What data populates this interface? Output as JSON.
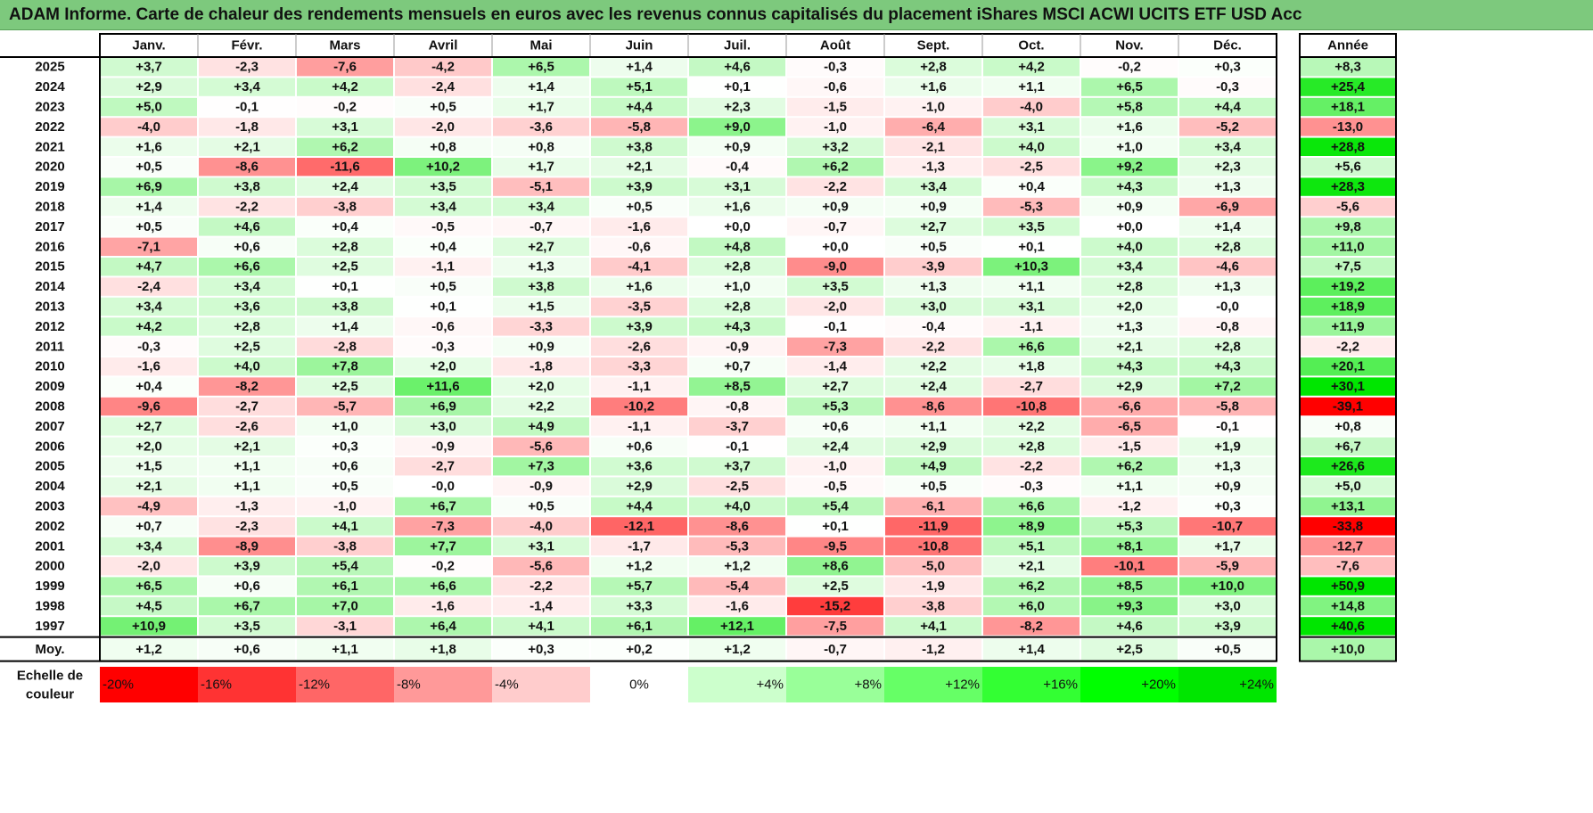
{
  "title": "ADAM Informe. Carte de chaleur des rendements mensuels en euros avec les revenus connus capitalisés du placement iShares MSCI ACWI UCITS ETF USD Acc",
  "chart_data": {
    "type": "heatmap",
    "months": [
      "Janv.",
      "Févr.",
      "Mars",
      "Avril",
      "Mai",
      "Juin",
      "Juil.",
      "Août",
      "Sept.",
      "Oct.",
      "Nov.",
      "Déc."
    ],
    "annual_header": "Année",
    "rows": [
      {
        "year": "2025",
        "values": [
          "+3,7",
          "-2,3",
          "-7,6",
          "-4,2",
          "+6,5",
          "+1,4",
          "+4,6",
          "-0,3",
          "+2,8",
          "+4,2",
          "-0,2",
          "+0,3"
        ],
        "annual": "+8,3"
      },
      {
        "year": "2024",
        "values": [
          "+2,9",
          "+3,4",
          "+4,2",
          "-2,4",
          "+1,4",
          "+5,1",
          "+0,1",
          "-0,6",
          "+1,6",
          "+1,1",
          "+6,5",
          "-0,3"
        ],
        "annual": "+25,4"
      },
      {
        "year": "2023",
        "values": [
          "+5,0",
          "-0,1",
          "-0,2",
          "+0,5",
          "+1,7",
          "+4,4",
          "+2,3",
          "-1,5",
          "-1,0",
          "-4,0",
          "+5,8",
          "+4,4"
        ],
        "annual": "+18,1"
      },
      {
        "year": "2022",
        "values": [
          "-4,0",
          "-1,8",
          "+3,1",
          "-2,0",
          "-3,6",
          "-5,8",
          "+9,0",
          "-1,0",
          "-6,4",
          "+3,1",
          "+1,6",
          "-5,2"
        ],
        "annual": "-13,0"
      },
      {
        "year": "2021",
        "values": [
          "+1,6",
          "+2,1",
          "+6,2",
          "+0,8",
          "+0,8",
          "+3,8",
          "+0,9",
          "+3,2",
          "-2,1",
          "+4,0",
          "+1,0",
          "+3,4"
        ],
        "annual": "+28,8"
      },
      {
        "year": "2020",
        "values": [
          "+0,5",
          "-8,6",
          "-11,6",
          "+10,2",
          "+1,7",
          "+2,1",
          "-0,4",
          "+6,2",
          "-1,3",
          "-2,5",
          "+9,2",
          "+2,3"
        ],
        "annual": "+5,6"
      },
      {
        "year": "2019",
        "values": [
          "+6,9",
          "+3,8",
          "+2,4",
          "+3,5",
          "-5,1",
          "+3,9",
          "+3,1",
          "-2,2",
          "+3,4",
          "+0,4",
          "+4,3",
          "+1,3"
        ],
        "annual": "+28,3"
      },
      {
        "year": "2018",
        "values": [
          "+1,4",
          "-2,2",
          "-3,8",
          "+3,4",
          "+3,4",
          "+0,5",
          "+1,6",
          "+0,9",
          "+0,9",
          "-5,3",
          "+0,9",
          "-6,9"
        ],
        "annual": "-5,6"
      },
      {
        "year": "2017",
        "values": [
          "+0,5",
          "+4,6",
          "+0,4",
          "-0,5",
          "-0,7",
          "-1,6",
          "+0,0",
          "-0,7",
          "+2,7",
          "+3,5",
          "+0,0",
          "+1,4"
        ],
        "annual": "+9,8"
      },
      {
        "year": "2016",
        "values": [
          "-7,1",
          "+0,6",
          "+2,8",
          "+0,4",
          "+2,7",
          "-0,6",
          "+4,8",
          "+0,0",
          "+0,5",
          "+0,1",
          "+4,0",
          "+2,8"
        ],
        "annual": "+11,0"
      },
      {
        "year": "2015",
        "values": [
          "+4,7",
          "+6,6",
          "+2,5",
          "-1,1",
          "+1,3",
          "-4,1",
          "+2,8",
          "-9,0",
          "-3,9",
          "+10,3",
          "+3,4",
          "-4,6"
        ],
        "annual": "+7,5"
      },
      {
        "year": "2014",
        "values": [
          "-2,4",
          "+3,4",
          "+0,1",
          "+0,5",
          "+3,8",
          "+1,6",
          "+1,0",
          "+3,5",
          "+1,3",
          "+1,1",
          "+2,8",
          "+1,3"
        ],
        "annual": "+19,2"
      },
      {
        "year": "2013",
        "values": [
          "+3,4",
          "+3,6",
          "+3,8",
          "+0,1",
          "+1,5",
          "-3,5",
          "+2,8",
          "-2,0",
          "+3,0",
          "+3,1",
          "+2,0",
          "-0,0"
        ],
        "annual": "+18,9"
      },
      {
        "year": "2012",
        "values": [
          "+4,2",
          "+2,8",
          "+1,4",
          "-0,6",
          "-3,3",
          "+3,9",
          "+4,3",
          "-0,1",
          "-0,4",
          "-1,1",
          "+1,3",
          "-0,8"
        ],
        "annual": "+11,9"
      },
      {
        "year": "2011",
        "values": [
          "-0,3",
          "+2,5",
          "-2,8",
          "-0,3",
          "+0,9",
          "-2,6",
          "-0,9",
          "-7,3",
          "-2,2",
          "+6,6",
          "+2,1",
          "+2,8"
        ],
        "annual": "-2,2"
      },
      {
        "year": "2010",
        "values": [
          "-1,6",
          "+4,0",
          "+7,8",
          "+2,0",
          "-1,8",
          "-3,3",
          "+0,7",
          "-1,4",
          "+2,2",
          "+1,8",
          "+4,3",
          "+4,3"
        ],
        "annual": "+20,1"
      },
      {
        "year": "2009",
        "values": [
          "+0,4",
          "-8,2",
          "+2,5",
          "+11,6",
          "+2,0",
          "-1,1",
          "+8,5",
          "+2,7",
          "+2,4",
          "-2,7",
          "+2,9",
          "+7,2"
        ],
        "annual": "+30,1"
      },
      {
        "year": "2008",
        "values": [
          "-9,6",
          "-2,7",
          "-5,7",
          "+6,9",
          "+2,2",
          "-10,2",
          "-0,8",
          "+5,3",
          "-8,6",
          "-10,8",
          "-6,6",
          "-5,8"
        ],
        "annual": "-39,1"
      },
      {
        "year": "2007",
        "values": [
          "+2,7",
          "-2,6",
          "+1,0",
          "+3,0",
          "+4,9",
          "-1,1",
          "-3,7",
          "+0,6",
          "+1,1",
          "+2,2",
          "-6,5",
          "-0,1"
        ],
        "annual": "+0,8"
      },
      {
        "year": "2006",
        "values": [
          "+2,0",
          "+2,1",
          "+0,3",
          "-0,9",
          "-5,6",
          "+0,6",
          "-0,1",
          "+2,4",
          "+2,9",
          "+2,8",
          "-1,5",
          "+1,9"
        ],
        "annual": "+6,7"
      },
      {
        "year": "2005",
        "values": [
          "+1,5",
          "+1,1",
          "+0,6",
          "-2,7",
          "+7,3",
          "+3,6",
          "+3,7",
          "-1,0",
          "+4,9",
          "-2,2",
          "+6,2",
          "+1,3"
        ],
        "annual": "+26,6"
      },
      {
        "year": "2004",
        "values": [
          "+2,1",
          "+1,1",
          "+0,5",
          "-0,0",
          "-0,9",
          "+2,9",
          "-2,5",
          "-0,5",
          "+0,5",
          "-0,3",
          "+1,1",
          "+0,9"
        ],
        "annual": "+5,0"
      },
      {
        "year": "2003",
        "values": [
          "-4,9",
          "-1,3",
          "-1,0",
          "+6,7",
          "+0,5",
          "+4,4",
          "+4,0",
          "+5,4",
          "-6,1",
          "+6,6",
          "-1,2",
          "+0,3"
        ],
        "annual": "+13,1"
      },
      {
        "year": "2002",
        "values": [
          "+0,7",
          "-2,3",
          "+4,1",
          "-7,3",
          "-4,0",
          "-12,1",
          "-8,6",
          "+0,1",
          "-11,9",
          "+8,9",
          "+5,3",
          "-10,7"
        ],
        "annual": "-33,8"
      },
      {
        "year": "2001",
        "values": [
          "+3,4",
          "-8,9",
          "-3,8",
          "+7,7",
          "+3,1",
          "-1,7",
          "-5,3",
          "-9,5",
          "-10,8",
          "+5,1",
          "+8,1",
          "+1,7"
        ],
        "annual": "-12,7"
      },
      {
        "year": "2000",
        "values": [
          "-2,0",
          "+3,9",
          "+5,4",
          "-0,2",
          "-5,6",
          "+1,2",
          "+1,2",
          "+8,6",
          "-5,0",
          "+2,1",
          "-10,1",
          "-5,9"
        ],
        "annual": "-7,6"
      },
      {
        "year": "1999",
        "values": [
          "+6,5",
          "+0,6",
          "+6,1",
          "+6,6",
          "-2,2",
          "+5,7",
          "-5,4",
          "+2,5",
          "-1,9",
          "+6,2",
          "+8,5",
          "+10,0"
        ],
        "annual": "+50,9"
      },
      {
        "year": "1998",
        "values": [
          "+4,5",
          "+6,7",
          "+7,0",
          "-1,6",
          "-1,4",
          "+3,3",
          "-1,6",
          "-15,2",
          "-3,8",
          "+6,0",
          "+9,3",
          "+3,0"
        ],
        "annual": "+14,8"
      },
      {
        "year": "1997",
        "values": [
          "+10,9",
          "+3,5",
          "-3,1",
          "+6,4",
          "+4,1",
          "+6,1",
          "+12,1",
          "-7,5",
          "+4,1",
          "-8,2",
          "+4,6",
          "+3,9"
        ],
        "annual": "+40,6"
      }
    ],
    "average": {
      "label": "Moy.",
      "values": [
        "+1,2",
        "+0,6",
        "+1,1",
        "+1,8",
        "+0,3",
        "+0,2",
        "+1,2",
        "-0,7",
        "-1,2",
        "+1,4",
        "+2,5",
        "+0,5"
      ],
      "annual": "+10,0"
    },
    "scale": {
      "label_line1": "Echelle de",
      "label_line2": "couleur",
      "steps": [
        {
          "label": "-20%",
          "value": -20,
          "color": "#ff0000"
        },
        {
          "label": "-16%",
          "value": -16,
          "color": "#ff3333"
        },
        {
          "label": "-12%",
          "value": -12,
          "color": "#ff6666"
        },
        {
          "label": "-8%",
          "value": -8,
          "color": "#ff9999"
        },
        {
          "label": "-4%",
          "value": -4,
          "color": "#ffcccc"
        },
        {
          "label": "0%",
          "value": 0,
          "color": "#ffffff"
        },
        {
          "label": "+4%",
          "value": 4,
          "color": "#ccffcc"
        },
        {
          "label": "+8%",
          "value": 8,
          "color": "#99ff99"
        },
        {
          "label": "+12%",
          "value": 12,
          "color": "#66ff66"
        },
        {
          "label": "+16%",
          "value": 16,
          "color": "#33ff33"
        },
        {
          "label": "+20%",
          "value": 20,
          "color": "#00ff00"
        },
        {
          "label": "+24%",
          "value": 24,
          "color": "#00e600"
        }
      ]
    },
    "colors": {
      "negative_max": "#ff0000",
      "positive_max": "#00e600",
      "neutral": "#ffffff",
      "title_bg": "#7dc97d"
    }
  }
}
